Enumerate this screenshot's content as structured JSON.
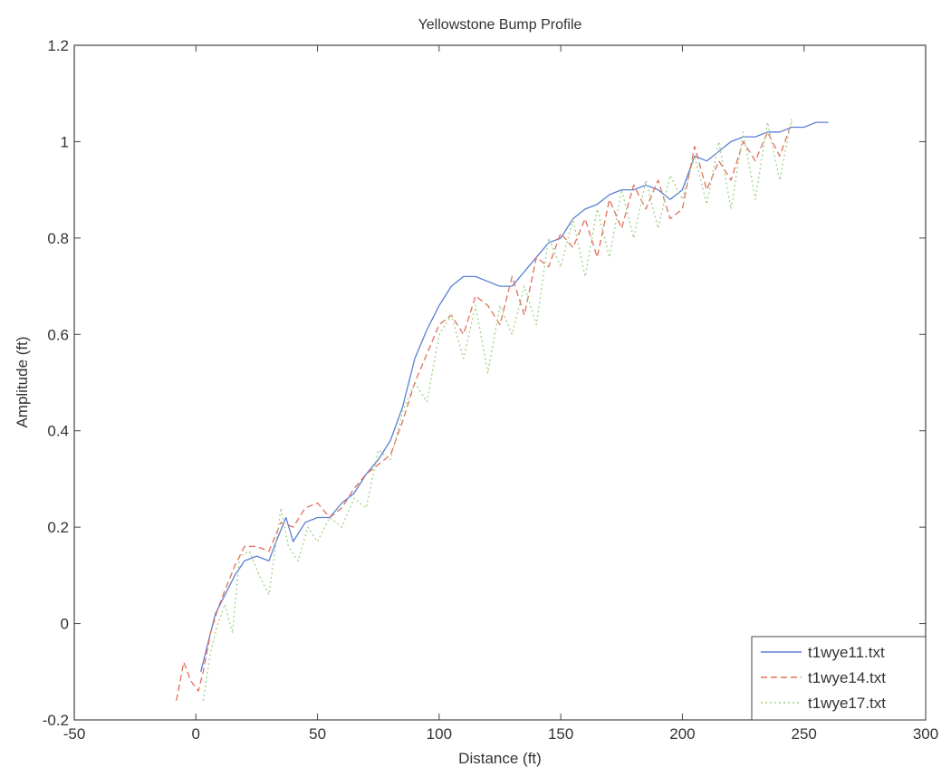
{
  "chart_data": {
    "type": "line",
    "title": "Yellowstone Bump Profile",
    "xlabel": "Distance (ft)",
    "ylabel": "Amplitude (ft)",
    "xlim": [
      -50,
      300
    ],
    "ylim": [
      -0.2,
      1.2
    ],
    "xticks": [
      -50,
      0,
      50,
      100,
      150,
      200,
      250,
      300
    ],
    "yticks": [
      -0.2,
      0,
      0.2,
      0.4,
      0.6,
      0.8,
      1,
      1.2
    ],
    "xtick_labels": [
      "-50",
      "0",
      "50",
      "100",
      "150",
      "200",
      "250",
      "300"
    ],
    "ytick_labels": [
      "-0.2",
      "0",
      "0.2",
      "0.4",
      "0.6",
      "0.8",
      "1",
      "1.2"
    ],
    "grid": false,
    "legend_position": "bottom-right",
    "series": [
      {
        "name": "t1wye11.txt",
        "color": "#5b7fd6",
        "dash": "solid",
        "x": [
          2,
          5,
          8,
          12,
          16,
          20,
          25,
          30,
          33,
          37,
          40,
          45,
          50,
          55,
          60,
          65,
          70,
          75,
          80,
          85,
          90,
          95,
          100,
          105,
          110,
          115,
          120,
          125,
          130,
          135,
          140,
          145,
          150,
          155,
          160,
          165,
          170,
          175,
          180,
          185,
          190,
          195,
          200,
          205,
          210,
          215,
          220,
          225,
          230,
          235,
          240,
          245,
          250,
          255,
          260
        ],
        "y": [
          -0.1,
          -0.04,
          0.02,
          0.06,
          0.1,
          0.13,
          0.14,
          0.13,
          0.17,
          0.22,
          0.17,
          0.21,
          0.22,
          0.22,
          0.25,
          0.27,
          0.31,
          0.34,
          0.38,
          0.45,
          0.55,
          0.61,
          0.66,
          0.7,
          0.72,
          0.72,
          0.71,
          0.7,
          0.7,
          0.73,
          0.76,
          0.79,
          0.8,
          0.84,
          0.86,
          0.87,
          0.89,
          0.9,
          0.9,
          0.91,
          0.9,
          0.88,
          0.9,
          0.97,
          0.96,
          0.98,
          1.0,
          1.01,
          1.01,
          1.02,
          1.02,
          1.03,
          1.03,
          1.04,
          1.04
        ]
      },
      {
        "name": "t1wye14.txt",
        "color": "#e0705a",
        "dash": "dashed",
        "x": [
          -8,
          -5,
          -2,
          1,
          3,
          6,
          9,
          12,
          16,
          20,
          25,
          30,
          35,
          40,
          45,
          50,
          55,
          60,
          65,
          70,
          75,
          80,
          85,
          90,
          95,
          100,
          105,
          110,
          115,
          120,
          125,
          130,
          135,
          140,
          145,
          150,
          155,
          160,
          165,
          170,
          175,
          180,
          185,
          190,
          195,
          200,
          205,
          210,
          215,
          220,
          225,
          230,
          235,
          240,
          245
        ],
        "y": [
          -0.16,
          -0.08,
          -0.12,
          -0.14,
          -0.1,
          -0.02,
          0.03,
          0.07,
          0.12,
          0.16,
          0.16,
          0.15,
          0.21,
          0.2,
          0.24,
          0.25,
          0.22,
          0.24,
          0.28,
          0.31,
          0.33,
          0.35,
          0.42,
          0.5,
          0.56,
          0.62,
          0.64,
          0.6,
          0.68,
          0.66,
          0.62,
          0.72,
          0.64,
          0.76,
          0.74,
          0.81,
          0.78,
          0.84,
          0.76,
          0.88,
          0.82,
          0.91,
          0.86,
          0.92,
          0.84,
          0.86,
          0.99,
          0.9,
          0.96,
          0.92,
          1.0,
          0.96,
          1.02,
          0.97,
          1.04
        ]
      },
      {
        "name": "t1wye17.txt",
        "color": "#9fd187",
        "dash": "dotted",
        "x": [
          3,
          6,
          9,
          12,
          15,
          18,
          22,
          26,
          30,
          35,
          38,
          42,
          46,
          50,
          55,
          60,
          65,
          70,
          75,
          80,
          85,
          90,
          95,
          100,
          105,
          110,
          115,
          120,
          125,
          130,
          135,
          140,
          145,
          150,
          155,
          160,
          165,
          170,
          175,
          180,
          185,
          190,
          195,
          200,
          205,
          210,
          215,
          220,
          225,
          230,
          235,
          240,
          245
        ],
        "y": [
          -0.16,
          -0.06,
          0.0,
          0.04,
          -0.02,
          0.14,
          0.15,
          0.1,
          0.06,
          0.24,
          0.16,
          0.13,
          0.2,
          0.17,
          0.22,
          0.2,
          0.26,
          0.24,
          0.36,
          0.34,
          0.44,
          0.5,
          0.46,
          0.6,
          0.64,
          0.55,
          0.66,
          0.52,
          0.66,
          0.6,
          0.7,
          0.62,
          0.8,
          0.74,
          0.84,
          0.72,
          0.86,
          0.76,
          0.9,
          0.8,
          0.92,
          0.82,
          0.93,
          0.88,
          0.97,
          0.87,
          1.0,
          0.86,
          1.02,
          0.88,
          1.04,
          0.92,
          1.05
        ]
      }
    ]
  }
}
